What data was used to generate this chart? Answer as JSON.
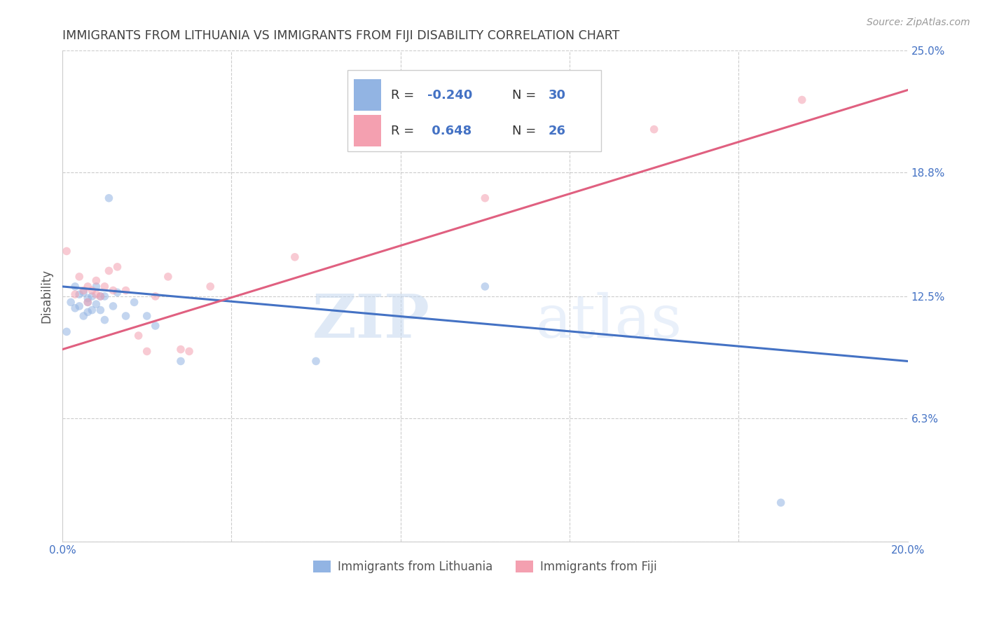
{
  "title": "IMMIGRANTS FROM LITHUANIA VS IMMIGRANTS FROM FIJI DISABILITY CORRELATION CHART",
  "source": "Source: ZipAtlas.com",
  "ylabel": "Disability",
  "xlim": [
    0.0,
    0.2
  ],
  "ylim": [
    0.0,
    0.25
  ],
  "xticks": [
    0.0,
    0.04,
    0.08,
    0.12,
    0.16,
    0.2
  ],
  "xticklabels": [
    "0.0%",
    "",
    "",
    "",
    "",
    "20.0%"
  ],
  "yticks": [
    0.0,
    0.063,
    0.125,
    0.188,
    0.25
  ],
  "yticklabels": [
    "",
    "6.3%",
    "12.5%",
    "18.8%",
    "25.0%"
  ],
  "watermark_zip": "ZIP",
  "watermark_atlas": "atlas",
  "legend_R_blue": "-0.240",
  "legend_N_blue": "30",
  "legend_R_pink": "0.648",
  "legend_N_pink": "26",
  "blue_color": "#92b4e3",
  "pink_color": "#f4a0b0",
  "blue_line_color": "#4472c4",
  "pink_line_color": "#e06080",
  "title_color": "#404040",
  "axis_tick_color": "#4472c4",
  "ylabel_color": "#555555",
  "blue_scatter_x": [
    0.001,
    0.002,
    0.003,
    0.003,
    0.004,
    0.004,
    0.005,
    0.005,
    0.006,
    0.006,
    0.006,
    0.007,
    0.007,
    0.008,
    0.008,
    0.009,
    0.009,
    0.01,
    0.01,
    0.011,
    0.012,
    0.013,
    0.015,
    0.017,
    0.02,
    0.022,
    0.028,
    0.06,
    0.1,
    0.17
  ],
  "blue_scatter_y": [
    0.107,
    0.122,
    0.13,
    0.119,
    0.126,
    0.12,
    0.127,
    0.115,
    0.122,
    0.117,
    0.124,
    0.118,
    0.125,
    0.121,
    0.13,
    0.125,
    0.118,
    0.113,
    0.125,
    0.175,
    0.12,
    0.127,
    0.115,
    0.122,
    0.115,
    0.11,
    0.092,
    0.092,
    0.13,
    0.02
  ],
  "pink_scatter_x": [
    0.001,
    0.003,
    0.004,
    0.005,
    0.006,
    0.006,
    0.007,
    0.008,
    0.008,
    0.009,
    0.01,
    0.011,
    0.012,
    0.013,
    0.015,
    0.018,
    0.02,
    0.022,
    0.025,
    0.028,
    0.03,
    0.035,
    0.055,
    0.1,
    0.14,
    0.175
  ],
  "pink_scatter_y": [
    0.148,
    0.126,
    0.135,
    0.128,
    0.13,
    0.122,
    0.128,
    0.126,
    0.133,
    0.125,
    0.13,
    0.138,
    0.128,
    0.14,
    0.128,
    0.105,
    0.097,
    0.125,
    0.135,
    0.098,
    0.097,
    0.13,
    0.145,
    0.175,
    0.21,
    0.225
  ],
  "blue_line_x": [
    0.0,
    0.2
  ],
  "blue_line_y": [
    0.13,
    0.092
  ],
  "pink_line_x": [
    0.0,
    0.2
  ],
  "pink_line_y": [
    0.098,
    0.23
  ],
  "background_color": "#ffffff",
  "grid_color": "#cccccc",
  "scatter_size": 70,
  "scatter_alpha": 0.55
}
